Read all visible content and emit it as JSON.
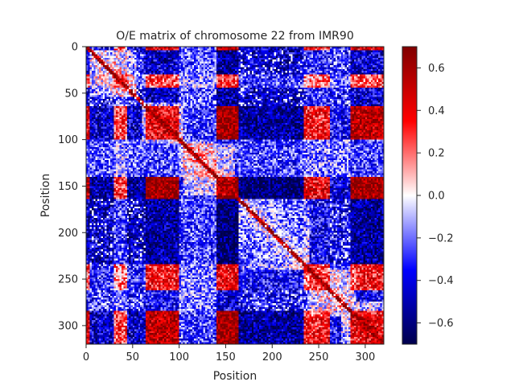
{
  "chart_data": {
    "type": "heatmap",
    "title": "O/E matrix of chromosome 22 from IMR90",
    "xlabel": "Position",
    "ylabel": "Position",
    "xlim": [
      0,
      320
    ],
    "ylim": [
      320,
      0
    ],
    "xticks": [
      0,
      50,
      100,
      150,
      200,
      250,
      300
    ],
    "yticks": [
      0,
      50,
      100,
      150,
      200,
      250,
      300
    ],
    "colormap": "seismic",
    "vmin": -0.7,
    "vmax": 0.7,
    "colorbar_ticks": [
      0.6,
      0.4,
      0.2,
      0.0,
      -0.2,
      -0.4,
      -0.6
    ],
    "colorbar_tick_labels": [
      "0.6",
      "0.4",
      "0.2",
      "0.0",
      "−0.2",
      "−0.4",
      "−0.6"
    ],
    "colors": {
      "min": "#00004c",
      "low": "#0000ff",
      "mid": "#ffffff",
      "high": "#ff0000",
      "max": "#800000"
    },
    "compartment_profile": [
      {
        "start": 0,
        "end": 5,
        "value": 0.5
      },
      {
        "start": 5,
        "end": 30,
        "value": -0.5
      },
      {
        "start": 30,
        "end": 45,
        "value": 0.3
      },
      {
        "start": 45,
        "end": 65,
        "value": -0.5
      },
      {
        "start": 65,
        "end": 100,
        "value": 0.6
      },
      {
        "start": 100,
        "end": 140,
        "value": -0.3
      },
      {
        "start": 140,
        "end": 165,
        "value": 0.7
      },
      {
        "start": 165,
        "end": 235,
        "value": -0.6
      },
      {
        "start": 235,
        "end": 262,
        "value": 0.4
      },
      {
        "start": 262,
        "end": 285,
        "value": -0.4
      },
      {
        "start": 285,
        "end": 320,
        "value": 0.6
      }
    ],
    "diagonal_blocks": [
      {
        "start": 5,
        "end": 55
      },
      {
        "start": 60,
        "end": 105
      },
      {
        "start": 105,
        "end": 160
      },
      {
        "start": 165,
        "end": 240
      },
      {
        "start": 240,
        "end": 290
      },
      {
        "start": 275,
        "end": 320
      }
    ]
  }
}
